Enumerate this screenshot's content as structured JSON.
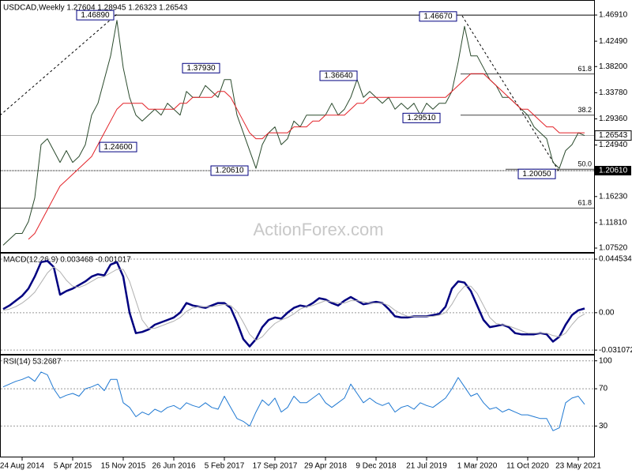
{
  "chart_data": [
    {
      "type": "line",
      "title": "USDCAD,Weekly 1.27604 1.28945 1.26323 1.26543",
      "watermark": "ActionForex.com",
      "ylim": [
        1.0699,
        1.4905
      ],
      "yticks": [
        {
          "value": 1.4691,
          "label": "1.46910"
        },
        {
          "value": 1.4249,
          "label": "1.42490"
        },
        {
          "value": 1.382,
          "label": "1.38200"
        },
        {
          "value": 1.3378,
          "label": "1.33780"
        },
        {
          "value": 1.2936,
          "label": "1.29360"
        },
        {
          "value": 1.2494,
          "label": "1.24940"
        },
        {
          "value": 1.1623,
          "label": "1.16230"
        },
        {
          "value": 1.1181,
          "label": "1.11810"
        },
        {
          "value": 1.0752,
          "label": "1.07520"
        }
      ],
      "grid": false,
      "series": [
        {
          "color": "#2a4a2c",
          "values": [
            1.08,
            1.09,
            1.1,
            1.1,
            1.12,
            1.16,
            1.25,
            1.26,
            1.24,
            1.22,
            1.24,
            1.22,
            1.23,
            1.25,
            1.3,
            1.32,
            1.36,
            1.4,
            1.46,
            1.38,
            1.33,
            1.3,
            1.29,
            1.3,
            1.31,
            1.3,
            1.32,
            1.31,
            1.3,
            1.34,
            1.33,
            1.33,
            1.35,
            1.34,
            1.33,
            1.36,
            1.36,
            1.3,
            1.27,
            1.24,
            1.21,
            1.25,
            1.27,
            1.28,
            1.25,
            1.26,
            1.29,
            1.28,
            1.3,
            1.3,
            1.3,
            1.3,
            1.32,
            1.3,
            1.31,
            1.33,
            1.36,
            1.33,
            1.34,
            1.33,
            1.32,
            1.33,
            1.31,
            1.32,
            1.31,
            1.32,
            1.3,
            1.32,
            1.31,
            1.32,
            1.32,
            1.34,
            1.39,
            1.45,
            1.4,
            1.4,
            1.38,
            1.36,
            1.35,
            1.33,
            1.33,
            1.32,
            1.31,
            1.3,
            1.28,
            1.27,
            1.26,
            1.22,
            1.21,
            1.24,
            1.25,
            1.27,
            1.26543
          ]
        },
        {
          "color": "#e32228",
          "values": [
            null,
            null,
            null,
            null,
            1.09,
            1.1,
            1.12,
            1.14,
            1.16,
            1.18,
            1.19,
            1.2,
            1.21,
            1.22,
            1.23,
            1.25,
            1.27,
            1.29,
            1.31,
            1.32,
            1.32,
            1.32,
            1.32,
            1.31,
            1.31,
            1.31,
            1.31,
            1.31,
            1.32,
            1.32,
            1.33,
            1.33,
            1.33,
            1.33,
            1.34,
            1.34,
            1.33,
            1.31,
            1.29,
            1.27,
            1.26,
            1.26,
            1.27,
            1.27,
            1.27,
            1.27,
            1.28,
            1.28,
            1.28,
            1.29,
            1.29,
            1.3,
            1.3,
            1.3,
            1.3,
            1.31,
            1.32,
            1.32,
            1.33,
            1.33,
            1.33,
            1.33,
            1.33,
            1.33,
            1.33,
            1.33,
            1.33,
            1.33,
            1.33,
            1.33,
            1.33,
            1.34,
            1.35,
            1.36,
            1.37,
            1.37,
            1.37,
            1.36,
            1.35,
            1.34,
            1.33,
            1.32,
            1.31,
            1.31,
            1.3,
            1.29,
            1.28,
            1.28,
            1.27,
            1.27,
            1.27,
            1.27,
            1.27
          ]
        }
      ],
      "last_price": {
        "value": 1.26543,
        "label": "1.26543"
      },
      "support_marker": {
        "value": 1.2061,
        "label": "1.20610"
      },
      "annotations": [
        {
          "value": 1.4689,
          "label": "1.46890"
        },
        {
          "value": 1.3793,
          "label": "1.37930"
        },
        {
          "value": 1.3664,
          "label": "1.36640"
        },
        {
          "value": 1.4667,
          "label": "1.46670"
        },
        {
          "value": 1.2951,
          "label": "1.29510"
        },
        {
          "value": 1.246,
          "label": "1.24600"
        },
        {
          "value": 1.2061,
          "label": "1.20610"
        },
        {
          "value": 1.2005,
          "label": "1.20050"
        }
      ],
      "fib_levels": [
        {
          "value": 1.3695,
          "label": "61.8"
        },
        {
          "value": 1.2999,
          "label": "38.2"
        },
        {
          "value": 1.2085,
          "label": "50.0"
        },
        {
          "value": 1.1429,
          "label": "61.8"
        }
      ]
    },
    {
      "type": "line",
      "title": "MACD(12,26,9) 0.003468 -0.001017",
      "ylim": [
        -0.0336,
        0.0478
      ],
      "yticks": [
        0.044534,
        {
          "value": 0,
          "label": "0.00"
        },
        -0.031072
      ],
      "grid": "dashed",
      "series": [
        {
          "color": "#000080",
          "values": [
            0.003,
            0.006,
            0.01,
            0.014,
            0.02,
            0.03,
            0.042,
            0.043,
            0.038,
            0.015,
            0.018,
            0.02,
            0.023,
            0.026,
            0.03,
            0.032,
            0.031,
            0.04,
            0.042,
            0.03,
            0.0,
            -0.017,
            -0.016,
            -0.014,
            -0.01,
            -0.008,
            -0.006,
            -0.004,
            0.0,
            0.008,
            0.006,
            0.005,
            0.004,
            0.006,
            0.008,
            0.008,
            0.004,
            -0.008,
            -0.022,
            -0.028,
            -0.022,
            -0.012,
            -0.006,
            -0.004,
            -0.005,
            0.0,
            0.004,
            0.006,
            0.005,
            0.008,
            0.012,
            0.011,
            0.008,
            0.006,
            0.01,
            0.013,
            0.01,
            0.007,
            0.008,
            0.009,
            0.008,
            0.003,
            -0.003,
            -0.004,
            -0.004,
            -0.003,
            -0.003,
            -0.003,
            -0.002,
            -0.001,
            0.005,
            0.02,
            0.026,
            0.025,
            0.018,
            0.006,
            -0.006,
            -0.012,
            -0.011,
            -0.01,
            -0.012,
            -0.017,
            -0.018,
            -0.018,
            -0.018,
            -0.017,
            -0.018,
            -0.024,
            -0.02,
            -0.01,
            -0.002,
            0.002,
            0.003468
          ]
        },
        {
          "color": "#b0b0b0",
          "values": [
            0.002,
            0.003,
            0.005,
            0.008,
            0.012,
            0.017,
            0.025,
            0.033,
            0.038,
            0.034,
            0.027,
            0.022,
            0.021,
            0.023,
            0.026,
            0.029,
            0.03,
            0.033,
            0.036,
            0.036,
            0.026,
            0.01,
            -0.006,
            -0.013,
            -0.013,
            -0.011,
            -0.009,
            -0.007,
            -0.004,
            0.001,
            0.004,
            0.005,
            0.005,
            0.005,
            0.006,
            0.007,
            0.006,
            0.001,
            -0.008,
            -0.018,
            -0.023,
            -0.02,
            -0.014,
            -0.009,
            -0.006,
            -0.004,
            -0.001,
            0.003,
            0.005,
            0.006,
            0.008,
            0.01,
            0.009,
            0.008,
            0.008,
            0.01,
            0.01,
            0.009,
            0.008,
            0.008,
            0.008,
            0.006,
            0.002,
            -0.001,
            -0.003,
            -0.003,
            -0.003,
            -0.003,
            -0.003,
            -0.002,
            0.0,
            0.007,
            0.016,
            0.022,
            0.022,
            0.016,
            0.006,
            -0.004,
            -0.009,
            -0.01,
            -0.011,
            -0.013,
            -0.015,
            -0.017,
            -0.017,
            -0.017,
            -0.017,
            -0.019,
            -0.02,
            -0.017,
            -0.01,
            -0.004,
            -0.001017
          ]
        }
      ]
    },
    {
      "type": "line",
      "title": "RSI(14) 53.2687",
      "ylim": [
        -2,
        104
      ],
      "yticks": [
        100,
        70,
        30
      ],
      "grid": "dashed",
      "categories": [
        null,
        null,
        null,
        "24 Aug 2014",
        null,
        null,
        null,
        null,
        null,
        null,
        null,
        "5 Apr 2015",
        null,
        null,
        null,
        null,
        null,
        null,
        null,
        "15 Nov 2015",
        null,
        null,
        null,
        null,
        null,
        null,
        null,
        "26 Jun 2016",
        null,
        null,
        null,
        null,
        null,
        null,
        null,
        "5 Feb 2017",
        null,
        null,
        null,
        null,
        null,
        null,
        null,
        "17 Sep 2017",
        null,
        null,
        null,
        null,
        null,
        null,
        null,
        "29 Apr 2018",
        null,
        null,
        null,
        null,
        null,
        null,
        null,
        "9 Dec 2018",
        null,
        null,
        null,
        null,
        null,
        null,
        null,
        "21 Jul 2019",
        null,
        null,
        null,
        null,
        null,
        null,
        null,
        "1 Mar 2020",
        null,
        null,
        null,
        null,
        null,
        null,
        null,
        "11 Oct 2020",
        null,
        null,
        null,
        null,
        null,
        null,
        null,
        "23 May 2021",
        null
      ],
      "series": [
        {
          "color": "#1e78d2",
          "values": [
            72,
            75,
            78,
            80,
            83,
            78,
            88,
            85,
            70,
            60,
            63,
            65,
            62,
            70,
            72,
            75,
            68,
            80,
            80,
            55,
            50,
            40,
            45,
            42,
            48,
            45,
            50,
            52,
            48,
            55,
            52,
            50,
            55,
            50,
            48,
            62,
            50,
            38,
            35,
            30,
            45,
            58,
            52,
            60,
            45,
            50,
            62,
            55,
            55,
            60,
            65,
            55,
            50,
            55,
            60,
            75,
            65,
            55,
            60,
            55,
            52,
            55,
            45,
            50,
            52,
            48,
            55,
            52,
            50,
            55,
            60,
            70,
            82,
            72,
            62,
            65,
            55,
            48,
            50,
            45,
            48,
            45,
            42,
            42,
            40,
            38,
            38,
            25,
            28,
            55,
            60,
            62,
            53.2687
          ]
        }
      ]
    }
  ]
}
